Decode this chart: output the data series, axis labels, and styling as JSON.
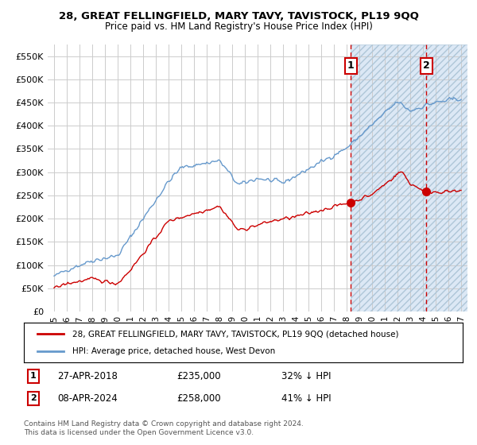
{
  "title": "28, GREAT FELLINGFIELD, MARY TAVY, TAVISTOCK, PL19 9QQ",
  "subtitle": "Price paid vs. HM Land Registry's House Price Index (HPI)",
  "red_label": "28, GREAT FELLINGFIELD, MARY TAVY, TAVISTOCK, PL19 9QQ (detached house)",
  "blue_label": "HPI: Average price, detached house, West Devon",
  "ann1_num": "1",
  "ann1_date": "27-APR-2018",
  "ann1_price": "£235,000",
  "ann1_pct": "32% ↓ HPI",
  "ann2_num": "2",
  "ann2_date": "08-APR-2024",
  "ann2_price": "£258,000",
  "ann2_pct": "41% ↓ HPI",
  "footnote": "Contains HM Land Registry data © Crown copyright and database right 2024.\nThis data is licensed under the Open Government Licence v3.0.",
  "vline1_x": 2018.32,
  "vline2_x": 2024.27,
  "marker1_red_y": 235000,
  "marker2_red_y": 258000,
  "ylim": [
    0,
    575000
  ],
  "yticks": [
    0,
    50000,
    100000,
    150000,
    200000,
    250000,
    300000,
    350000,
    400000,
    450000,
    500000,
    550000
  ],
  "xlim": [
    1994.5,
    2027.5
  ],
  "xticks": [
    1995,
    1996,
    1997,
    1998,
    1999,
    2000,
    2001,
    2002,
    2003,
    2004,
    2005,
    2006,
    2007,
    2008,
    2009,
    2010,
    2011,
    2012,
    2013,
    2014,
    2015,
    2016,
    2017,
    2018,
    2019,
    2020,
    2021,
    2022,
    2023,
    2024,
    2025,
    2026,
    2027
  ],
  "red_color": "#cc0000",
  "blue_color": "#6699cc",
  "hatch_fill_color": "#dce8f5",
  "vline_color": "#cc0000",
  "bg_color": "#ffffff",
  "grid_color": "#cccccc",
  "hatch_start_x": 2018.32,
  "hatch_end_x": 2027.5
}
